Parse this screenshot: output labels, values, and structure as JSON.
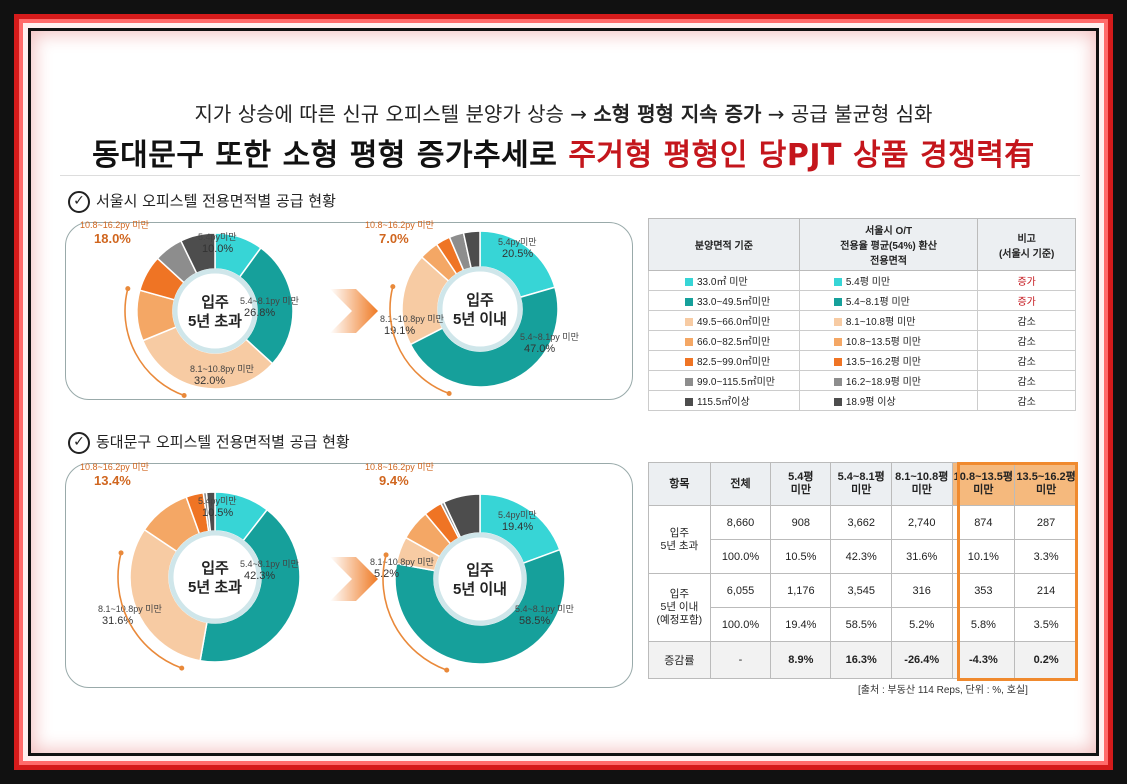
{
  "heading": {
    "line1_plain1": "지가 상승에 따른 신규 오피스텔 분양가 상승 → ",
    "line1_bold": "소형 평형 지속 증가",
    "line1_plain2": " → 공급 불균형 심화",
    "line2_black": "동대문구 또한 소형 평형 증가추세로 ",
    "line2_red": "주거형 평형인 당PJT 상품 경쟁력有"
  },
  "section1_title": "서울시 오피스텔 전용면적별 공급 현황",
  "section2_title": "동대문구 오피스텔 전용면적별 공급 현황",
  "colors": {
    "c1": "#37d5d6",
    "c2": "#16a09b",
    "c3": "#f7cba3",
    "c4": "#f4a765",
    "c5": "#ef7424",
    "c6": "#8d8d8d",
    "c7": "#4d4d4d",
    "red": "#c4161c",
    "orange": "#f08a2e"
  },
  "chart_data": [
    {
      "type": "pie",
      "title": "서울시 입주 5년 초과",
      "center_label": [
        "입주",
        "5년 초과"
      ],
      "slices": [
        {
          "label": "5.4py 미만",
          "value": 10.0
        },
        {
          "label": "5.4~8.1py 미만",
          "value": 26.8
        },
        {
          "label": "8.1~10.8py 미만",
          "value": 32.0
        },
        {
          "label": "10.8~13.5py",
          "value": 10.5
        },
        {
          "label": "13.5~16.2py",
          "value": 7.5
        },
        {
          "label": "16.2~18.9py",
          "value": 6.0
        },
        {
          "label": "18.9py 이상",
          "value": 7.2
        }
      ],
      "data_labels": [
        {
          "name": "5.4py미만",
          "value": "10.0%"
        },
        {
          "name": "5.4~8.1py 미만",
          "value": "26.8%"
        },
        {
          "name": "8.1~10.8py 미만",
          "value": "32.0%"
        }
      ],
      "bracket": {
        "label": "10.8~16.2py 미만",
        "value": "18.0%"
      }
    },
    {
      "type": "pie",
      "title": "서울시 입주 5년 이내",
      "center_label": [
        "입주",
        "5년 이내"
      ],
      "slices": [
        {
          "label": "5.4py 미만",
          "value": 20.5
        },
        {
          "label": "5.4~8.1py 미만",
          "value": 47.0
        },
        {
          "label": "8.1~10.8py 미만",
          "value": 19.1
        },
        {
          "label": "10.8~13.5py",
          "value": 4.0
        },
        {
          "label": "13.5~16.2py",
          "value": 3.0
        },
        {
          "label": "16.2~18.9py",
          "value": 3.0
        },
        {
          "label": "18.9py 이상",
          "value": 3.4
        }
      ],
      "data_labels": [
        {
          "name": "5.4py미만",
          "value": "20.5%"
        },
        {
          "name": "5.4~8.1py 미만",
          "value": "47.0%"
        },
        {
          "name": "8.1~10.8py 미만",
          "value": "19.1%"
        }
      ],
      "bracket": {
        "label": "10.8~16.2py 미만",
        "value": "7.0%"
      }
    },
    {
      "type": "pie",
      "title": "동대문구 입주 5년 초과",
      "center_label": [
        "입주",
        "5년 초과"
      ],
      "slices": [
        {
          "label": "5.4py 미만",
          "value": 10.5
        },
        {
          "label": "5.4~8.1py 미만",
          "value": 42.3
        },
        {
          "label": "8.1~10.8py 미만",
          "value": 31.6
        },
        {
          "label": "10.8~13.5py",
          "value": 10.1
        },
        {
          "label": "13.5~16.2py",
          "value": 3.3
        },
        {
          "label": "16.2~18.9py",
          "value": 0.6
        },
        {
          "label": "18.9py 이상",
          "value": 1.6
        }
      ],
      "data_labels": [
        {
          "name": "5.4py미만",
          "value": "10.5%"
        },
        {
          "name": "5.4~8.1py 미만",
          "value": "42.3%"
        },
        {
          "name": "8.1~10.8py 미만",
          "value": "31.6%"
        }
      ],
      "bracket": {
        "label": "10.8~16.2py 미만",
        "value": "13.4%"
      }
    },
    {
      "type": "pie",
      "title": "동대문구 입주 5년 이내",
      "center_label": [
        "입주",
        "5년 이내"
      ],
      "slices": [
        {
          "label": "5.4py 미만",
          "value": 19.4
        },
        {
          "label": "5.4~8.1py 미만",
          "value": 58.5
        },
        {
          "label": "8.1~10.8py 미만",
          "value": 5.2
        },
        {
          "label": "10.8~13.5py",
          "value": 5.8
        },
        {
          "label": "13.5~16.2py",
          "value": 3.5
        },
        {
          "label": "16.2~18.9py",
          "value": 0.6
        },
        {
          "label": "18.9py 이상",
          "value": 7.0
        }
      ],
      "data_labels": [
        {
          "name": "5.4py미만",
          "value": "19.4%"
        },
        {
          "name": "5.4~8.1py 미만",
          "value": "58.5%"
        },
        {
          "name": "8.1~10.8py 미만",
          "value": "5.2%"
        }
      ],
      "bracket": {
        "label": "10.8~16.2py 미만",
        "value": "9.4%"
      }
    },
    {
      "type": "table",
      "title": "서울시 O/T 전용면적별 공급",
      "headers": [
        "분양면적 기준",
        "서울시 O/T 전용율 평균(54%) 환산 전용면적",
        "비고 (서울시 기준)"
      ],
      "header_col2_lines": [
        "서울시 O/T",
        "전용율 평균(54%) 환산",
        "전용면적"
      ],
      "header_col3_lines": [
        "비고",
        "(서울시 기준)"
      ],
      "rows": [
        {
          "area": "33.0㎡ 미만",
          "exclusive": "5.4평 미만",
          "note": "증가"
        },
        {
          "area": "33.0~49.5㎡미만",
          "exclusive": "5.4~8.1평 미만",
          "note": "증가"
        },
        {
          "area": "49.5~66.0㎡미만",
          "exclusive": "8.1~10.8평 미만",
          "note": "감소"
        },
        {
          "area": "66.0~82.5㎡미만",
          "exclusive": "10.8~13.5평 미만",
          "note": "감소"
        },
        {
          "area": "82.5~99.0㎡미만",
          "exclusive": "13.5~16.2평 미만",
          "note": "감소"
        },
        {
          "area": "99.0~115.5㎡미만",
          "exclusive": "16.2~18.9평 미만",
          "note": "감소"
        },
        {
          "area": "115.5㎡이상",
          "exclusive": "18.9평 이상",
          "note": "감소"
        }
      ]
    },
    {
      "type": "table",
      "title": "동대문구 O/T 공급",
      "headers": [
        [
          "항목"
        ],
        [
          "전체"
        ],
        [
          "5.4평",
          "미만"
        ],
        [
          "5.4~8.1평",
          "미만"
        ],
        [
          "8.1~10.8평",
          "미만"
        ],
        [
          "10.8~13.5평",
          "미만"
        ],
        [
          "13.5~16.2평",
          "미만"
        ]
      ],
      "groups": [
        {
          "label": [
            "입주",
            "5년 초과"
          ],
          "rows": [
            [
              "8,660",
              "908",
              "3,662",
              "2,740",
              "874",
              "287"
            ],
            [
              "100.0%",
              "10.5%",
              "42.3%",
              "31.6%",
              "10.1%",
              "3.3%"
            ]
          ]
        },
        {
          "label": [
            "입주",
            "5년 이내",
            "(예정포함)"
          ],
          "rows": [
            [
              "6,055",
              "1,176",
              "3,545",
              "316",
              "353",
              "214"
            ],
            [
              "100.0%",
              "19.4%",
              "58.5%",
              "5.2%",
              "5.8%",
              "3.5%"
            ]
          ]
        }
      ],
      "change_row": {
        "label": "증감률",
        "values": [
          "-",
          "8.9%",
          "16.3%",
          "-26.4%",
          "-4.3%",
          "0.2%"
        ]
      }
    }
  ],
  "source": "[출처 : 부동산 114 Reps, 단위 : %, 호실]"
}
